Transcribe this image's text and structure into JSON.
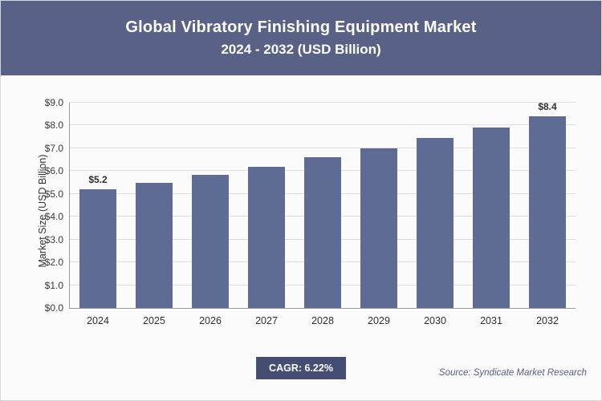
{
  "header": {
    "title": "Global Vibratory Finishing Equipment Market",
    "subtitle": "2024 - 2032 (USD Billion)"
  },
  "chart_data": {
    "type": "bar",
    "title": "Global Vibratory Finishing Equipment Market 2024 - 2032 (USD Billion)",
    "categories": [
      "2024",
      "2025",
      "2026",
      "2027",
      "2028",
      "2029",
      "2030",
      "2031",
      "2032"
    ],
    "values": [
      5.2,
      5.5,
      5.85,
      6.2,
      6.6,
      7.0,
      7.45,
      7.9,
      8.4
    ],
    "bar_labels": [
      "$5.2",
      "",
      "",
      "",
      "",
      "",
      "",
      "",
      "$8.4"
    ],
    "xlabel": "",
    "ylabel": "Market Size (USD Billion)",
    "ylim": [
      0,
      9
    ],
    "ytick_labels": [
      "$0.0",
      "$1.0",
      "$2.0",
      "$3.0",
      "$4.0",
      "$5.0",
      "$6.0",
      "$7.0",
      "$8.0",
      "$9.0"
    ],
    "grid": true,
    "legend": "none"
  },
  "footer": {
    "cagr_label": "CAGR: 6.22%",
    "source": "Source: Syndicate Market Research"
  },
  "colors": {
    "accent": "#596286",
    "bar": "#5e6c93",
    "badge": "#434e72"
  }
}
